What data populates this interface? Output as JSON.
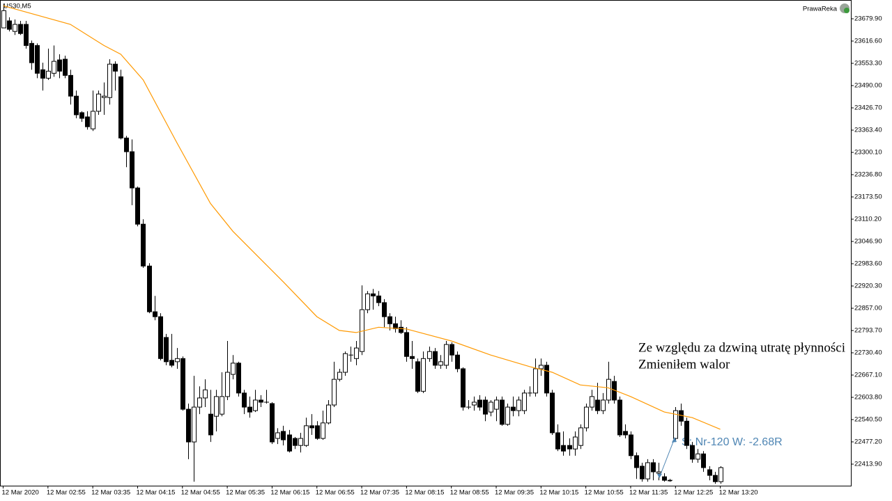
{
  "chart_data": {
    "type": "candlestick",
    "title": "US30,M5",
    "broker": "PrawaReka",
    "annotations": [
      "Ze względu za dzwiną utratę płynności",
      "Zmieniłem walor"
    ],
    "trade_label": "S: Nr-120   W: -2.68R",
    "up_color": "#ffffff",
    "down_color": "#000000",
    "ylim": [
      22352.6,
      23733.3
    ],
    "yticks": [
      {
        "value": 22413.9,
        "label": "22413.90"
      },
      {
        "value": 22477.2,
        "label": "22477.20"
      },
      {
        "value": 22540.5,
        "label": "22540.50"
      },
      {
        "value": 22603.8,
        "label": "22603.80"
      },
      {
        "value": 22667.1,
        "label": "22667.10"
      },
      {
        "value": 22730.4,
        "label": "22730.40"
      },
      {
        "value": 22793.7,
        "label": "22793.70"
      },
      {
        "value": 22857.0,
        "label": "22857.00"
      },
      {
        "value": 22920.3,
        "label": "22920.30"
      },
      {
        "value": 22983.6,
        "label": "22983.60"
      },
      {
        "value": 23046.9,
        "label": "23046.90"
      },
      {
        "value": 23110.2,
        "label": "23110.20"
      },
      {
        "value": 23173.5,
        "label": "23173.50"
      },
      {
        "value": 23236.8,
        "label": "23236.80"
      },
      {
        "value": 23300.1,
        "label": "23300.10"
      },
      {
        "value": 23363.4,
        "label": "23363.40"
      },
      {
        "value": 23426.7,
        "label": "23426.70"
      },
      {
        "value": 23490.0,
        "label": "23490.00"
      },
      {
        "value": 23553.3,
        "label": "23553.30"
      },
      {
        "value": 23616.6,
        "label": "23616.60"
      },
      {
        "value": 23679.9,
        "label": "23679.90"
      }
    ],
    "categories": [
      "12 Mar 2020",
      null,
      null,
      null,
      null,
      null,
      null,
      null,
      "12 Mar 02:55",
      null,
      null,
      null,
      null,
      null,
      null,
      null,
      "12 Mar 03:35",
      null,
      null,
      null,
      null,
      null,
      null,
      null,
      "12 Mar 04:15",
      null,
      null,
      null,
      null,
      null,
      null,
      null,
      "12 Mar 04:55",
      null,
      null,
      null,
      null,
      null,
      null,
      null,
      "12 Mar 05:35",
      null,
      null,
      null,
      null,
      null,
      null,
      null,
      "12 Mar 06:15",
      null,
      null,
      null,
      null,
      null,
      null,
      null,
      "12 Mar 06:55",
      null,
      null,
      null,
      null,
      null,
      null,
      null,
      "12 Mar 07:35",
      null,
      null,
      null,
      null,
      null,
      null,
      null,
      "12 Mar 08:15",
      null,
      null,
      null,
      null,
      null,
      null,
      null,
      "12 Mar 08:55",
      null,
      null,
      null,
      null,
      null,
      null,
      null,
      "12 Mar 09:35",
      null,
      null,
      null,
      null,
      null,
      null,
      null,
      "12 Mar 10:15",
      null,
      null,
      null,
      null,
      null,
      null,
      null,
      "12 Mar 10:55",
      null,
      null,
      null,
      null,
      null,
      null,
      null,
      "12 Mar 11:35",
      null,
      null,
      null,
      null,
      null,
      null,
      null,
      "12 Mar 12:25",
      null,
      null,
      null,
      null,
      null,
      null,
      null,
      "12 Mar 13:20"
    ],
    "open": [
      23654,
      23674,
      23644,
      23664,
      23664,
      23610,
      23604,
      23535,
      23511,
      23525,
      23563,
      23565,
      23519,
      23460,
      23413,
      23401,
      23367,
      23417,
      23456,
      23456,
      23551,
      23515,
      23341,
      23302,
      23199,
      23096,
      22977,
      22847,
      22833,
      22774,
      22709,
      22705,
      22714,
      22570,
      22477,
      22576,
      22602,
      22556,
      22550,
      22556,
      22606,
      22669,
      22701,
      22616,
      22576,
      22566,
      22596,
      22590,
      22586,
      22487,
      22507,
      22497,
      22487,
      22467,
      22467,
      22523,
      22523,
      22487,
      22531,
      22582,
      22655,
      22675,
      22724,
      22714,
      22734,
      22853,
      22898,
      22892,
      22873,
      22833,
      22813,
      22803,
      22788,
      22720,
      22705,
      22621,
      22714,
      22734,
      22695,
      22695,
      22754,
      22724,
      22685,
      22576,
      22582,
      22596,
      22596,
      22562,
      22570,
      22596,
      22527,
      22576,
      22566,
      22566,
      22616,
      22616,
      22685,
      22695,
      22616,
      22503,
      22467,
      22467,
      22457,
      22467,
      22517,
      22576,
      22596,
      22566,
      22596,
      22649,
      22596,
      22507,
      22497,
      22438,
      22408,
      22372,
      22418,
      22388,
      22378,
      22368,
      22487,
      22566,
      22536,
      22467,
      22428,
      22443,
      22398,
      22382,
      22364
    ],
    "high": [
      23723,
      23684,
      23678,
      23674,
      23674,
      23618,
      23610,
      23555,
      23595,
      23604,
      23579,
      23575,
      23535,
      23476,
      23417,
      23417,
      23476,
      23476,
      23499,
      23565,
      23559,
      23535,
      23347,
      23337,
      23203,
      23110,
      22985,
      22892,
      22843,
      22784,
      22784,
      22744,
      22720,
      22586,
      22665,
      22635,
      22655,
      22625,
      22625,
      22675,
      22764,
      22724,
      22705,
      22625,
      22606,
      22625,
      22610,
      22625,
      22590,
      22516,
      22523,
      22511,
      22491,
      22503,
      22546,
      22556,
      22536,
      22566,
      22596,
      22705,
      22685,
      22734,
      22748,
      22764,
      22922,
      22906,
      22912,
      22906,
      22883,
      22843,
      22833,
      22823,
      22803,
      22764,
      22714,
      22734,
      22748,
      22744,
      22724,
      22764,
      22760,
      22734,
      22689,
      22596,
      22606,
      22610,
      22606,
      22596,
      22606,
      22606,
      22586,
      22606,
      22606,
      22625,
      22635,
      22714,
      22714,
      22705,
      22625,
      22527,
      22507,
      22487,
      22507,
      22527,
      22586,
      22625,
      22645,
      22616,
      22705,
      22665,
      22606,
      22527,
      22507,
      22447,
      22418,
      22428,
      22428,
      22418,
      22388,
      22372,
      22576,
      22586,
      22546,
      22477,
      22457,
      22451,
      22408,
      22392,
      22408
    ],
    "low": [
      23654,
      23644,
      23634,
      23634,
      23595,
      23535,
      23511,
      23476,
      23506,
      23515,
      23511,
      23511,
      23436,
      23397,
      23387,
      23365,
      23361,
      23407,
      23407,
      23436,
      23476,
      23337,
      23258,
      23150,
      23090,
      22972,
      22843,
      22823,
      22709,
      22695,
      22689,
      22685,
      22566,
      22428,
      22364,
      22556,
      22576,
      22477,
      22507,
      22550,
      22596,
      22655,
      22606,
      22556,
      22546,
      22562,
      22576,
      22586,
      22471,
      22471,
      22467,
      22447,
      22457,
      22447,
      22463,
      22497,
      22483,
      22483,
      22527,
      22576,
      22649,
      22665,
      22705,
      22695,
      22724,
      22843,
      22853,
      22863,
      22803,
      22794,
      22788,
      22784,
      22705,
      22685,
      22616,
      22616,
      22705,
      22685,
      22685,
      22685,
      22705,
      22675,
      22566,
      22570,
      22566,
      22566,
      22536,
      22550,
      22536,
      22523,
      22523,
      22550,
      22550,
      22556,
      22606,
      22606,
      22665,
      22606,
      22497,
      22451,
      22438,
      22438,
      22438,
      22457,
      22507,
      22566,
      22556,
      22556,
      22586,
      22586,
      22491,
      22487,
      22428,
      22372,
      22364,
      22364,
      22368,
      22368,
      22364,
      22364,
      22477,
      22523,
      22457,
      22418,
      22418,
      22392,
      22368,
      22358,
      22358
    ],
    "close": [
      23703,
      23650,
      23664,
      23638,
      23604,
      23555,
      23525,
      23511,
      23531,
      23559,
      23531,
      23519,
      23460,
      23407,
      23397,
      23373,
      23417,
      23466,
      23460,
      23551,
      23531,
      23341,
      23302,
      23199,
      23096,
      22977,
      22847,
      22833,
      22714,
      22705,
      22695,
      22714,
      22570,
      22477,
      22576,
      22602,
      22625,
      22497,
      22606,
      22606,
      22675,
      22701,
      22616,
      22576,
      22562,
      22596,
      22590,
      22590,
      22477,
      22503,
      22483,
      22451,
      22467,
      22487,
      22523,
      22517,
      22487,
      22531,
      22582,
      22655,
      22675,
      22728,
      22724,
      22744,
      22853,
      22898,
      22892,
      22873,
      22833,
      22813,
      22799,
      22788,
      22720,
      22714,
      22621,
      22714,
      22734,
      22695,
      22705,
      22754,
      22724,
      22685,
      22576,
      22576,
      22590,
      22576,
      22556,
      22590,
      22596,
      22527,
      22576,
      22566,
      22596,
      22616,
      22616,
      22685,
      22695,
      22616,
      22503,
      22457,
      22451,
      22457,
      22491,
      22517,
      22576,
      22606,
      22566,
      22596,
      22655,
      22596,
      22497,
      22497,
      22438,
      22404,
      22372,
      22418,
      22392,
      22392,
      22368,
      22368,
      22566,
      22536,
      22467,
      22428,
      22443,
      22404,
      22382,
      22364,
      22404
    ],
    "line": {
      "color": "#ff9900",
      "x": [
        0,
        12,
        18,
        21,
        25,
        31,
        37,
        41,
        50,
        56,
        60,
        63,
        67,
        72,
        80,
        87,
        94,
        98,
        103,
        108,
        112,
        118,
        123,
        128
      ],
      "values": [
        23717,
        23664,
        23604,
        23579,
        23506,
        23328,
        23155,
        23076,
        22932,
        22833,
        22794,
        22788,
        22803,
        22798,
        22764,
        22724,
        22691,
        22675,
        22639,
        22631,
        22606,
        22562,
        22546,
        22513
      ]
    }
  }
}
